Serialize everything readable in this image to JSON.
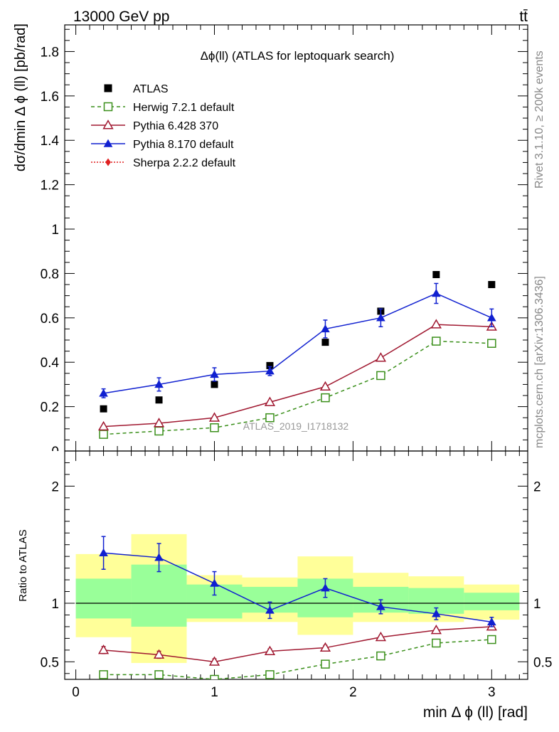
{
  "header": {
    "energy_label": "13000 GeV pp",
    "process_label": "tt̄",
    "rivet_label": "Rivet 3.1.10, ≥ 200k events",
    "mcplots_label": "mcplots.cern.ch [arXiv:1306.3436]"
  },
  "chart_data": [
    {
      "type": "scatter",
      "title": "Δϕ(ll) (ATLAS for leptoquark search)",
      "xlabel": "min Δ ϕ (ll) [rad]",
      "ylabel": "dσ/dmin Δ ϕ (ll) [pb/rad]",
      "xlim": [
        -0.08,
        3.26
      ],
      "ylim": [
        0,
        1.92
      ],
      "x_ticks": [
        "0",
        "1",
        "2",
        "3"
      ],
      "y_ticks": [
        "0.2",
        "0.4",
        "0.6",
        "0.8",
        "1",
        "1.2",
        "1.4",
        "1.6",
        "1.8"
      ],
      "watermark": "ATLAS_2019_I1718132",
      "x": [
        0.2,
        0.6,
        1.0,
        1.4,
        1.8,
        2.2,
        2.6,
        3.0
      ],
      "series": [
        {
          "name": "ATLAS",
          "color": "#000000",
          "marker": "square",
          "values": [
            0.19,
            0.23,
            0.3,
            0.385,
            0.49,
            0.63,
            0.795,
            0.75
          ]
        },
        {
          "name": "Herwig 7.2.1 default",
          "color": "#3a8f1a",
          "marker": "open-square",
          "dashed": true,
          "values": [
            0.075,
            0.09,
            0.105,
            0.15,
            0.24,
            0.34,
            0.495,
            0.485
          ]
        },
        {
          "name": "Pythia 6.428 370",
          "color": "#a01830",
          "marker": "open-triangle",
          "values": [
            0.11,
            0.125,
            0.15,
            0.22,
            0.29,
            0.42,
            0.57,
            0.56
          ]
        },
        {
          "name": "Pythia 8.170 default",
          "color": "#1020d0",
          "marker": "triangle",
          "values": [
            0.26,
            0.3,
            0.345,
            0.36,
            0.55,
            0.6,
            0.71,
            0.6
          ],
          "errors": [
            0.02,
            0.03,
            0.03,
            0.02,
            0.04,
            0.04,
            0.045,
            0.04
          ]
        },
        {
          "name": "Sherpa 2.2.2 default",
          "color": "#e02020",
          "marker": "diamond",
          "dotted": true,
          "values": []
        }
      ]
    },
    {
      "type": "scatter",
      "xlabel": "min Δ ϕ (ll) [rad]",
      "ylabel": "Ratio to ATLAS",
      "xlim": [
        -0.08,
        3.26
      ],
      "ylim": [
        0.35,
        2.3
      ],
      "y_ticks": [
        "0.5",
        "1",
        "2"
      ],
      "x": [
        0.2,
        0.6,
        1.0,
        1.4,
        1.8,
        2.2,
        2.6,
        3.0
      ],
      "bands": [
        {
          "x0": 0.0,
          "x1": 0.4,
          "yellow": [
            0.71,
            1.42
          ],
          "green": [
            0.87,
            1.21
          ]
        },
        {
          "x0": 0.4,
          "x1": 0.8,
          "yellow": [
            0.49,
            1.59
          ],
          "green": [
            0.8,
            1.33
          ]
        },
        {
          "x0": 0.8,
          "x1": 1.2,
          "yellow": [
            0.84,
            1.24
          ],
          "green": [
            0.87,
            1.16
          ]
        },
        {
          "x0": 1.2,
          "x1": 1.6,
          "yellow": [
            0.84,
            1.22
          ],
          "green": [
            0.92,
            1.14
          ]
        },
        {
          "x0": 1.6,
          "x1": 2.0,
          "yellow": [
            0.73,
            1.4
          ],
          "green": [
            0.88,
            1.21
          ]
        },
        {
          "x0": 2.0,
          "x1": 2.4,
          "yellow": [
            0.84,
            1.26
          ],
          "green": [
            0.92,
            1.14
          ]
        },
        {
          "x0": 2.4,
          "x1": 2.8,
          "yellow": [
            0.84,
            1.23
          ],
          "green": [
            0.91,
            1.13
          ]
        },
        {
          "x0": 2.8,
          "x1": 3.2,
          "yellow": [
            0.86,
            1.16
          ],
          "green": [
            0.94,
            1.09
          ]
        }
      ],
      "series": [
        {
          "name": "Herwig 7.2.1 default",
          "color": "#3a8f1a",
          "marker": "open-square",
          "dashed": true,
          "values": [
            0.39,
            0.39,
            0.35,
            0.39,
            0.48,
            0.55,
            0.66,
            0.69
          ]
        },
        {
          "name": "Pythia 6.428 370",
          "color": "#a01830",
          "marker": "open-triangle",
          "values": [
            0.6,
            0.56,
            0.5,
            0.59,
            0.62,
            0.71,
            0.77,
            0.8
          ],
          "errors": [
            0.03,
            0.03,
            0.025,
            0.02,
            0.02,
            0.015,
            0.015,
            0.015
          ]
        },
        {
          "name": "Pythia 8.170 default",
          "color": "#1020d0",
          "marker": "triangle",
          "values": [
            1.43,
            1.39,
            1.17,
            0.94,
            1.13,
            0.97,
            0.91,
            0.84
          ],
          "errors": [
            0.14,
            0.12,
            0.1,
            0.07,
            0.08,
            0.06,
            0.05,
            0.04
          ]
        }
      ]
    }
  ]
}
